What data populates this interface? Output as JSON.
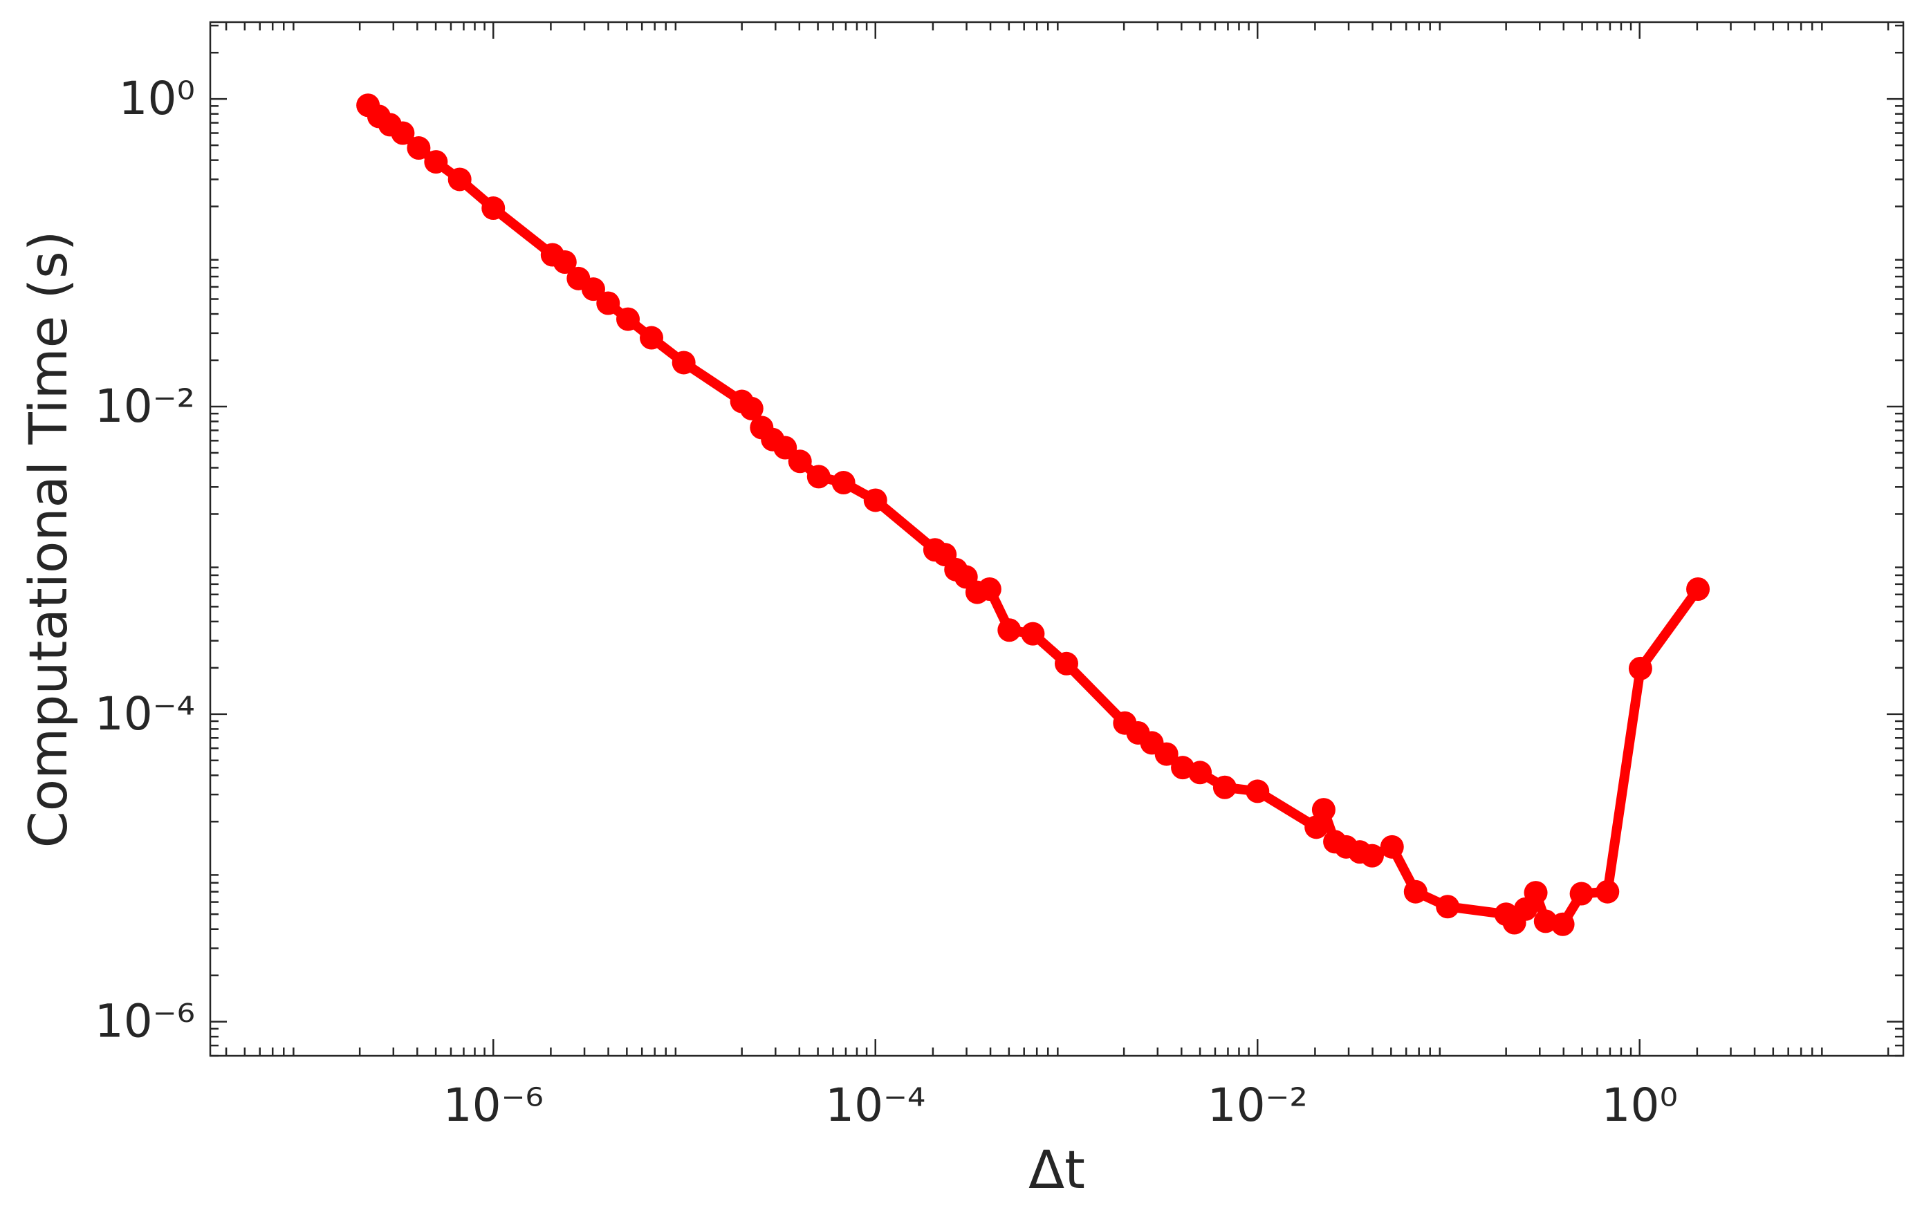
{
  "chart_data": {
    "type": "line",
    "x_label": "Δt",
    "y_label": "Computational Time (s)",
    "log_x": true,
    "log_y": true,
    "xlim": [
      3.3e-08,
      24
    ],
    "ylim": [
      6e-07,
      3.16
    ],
    "xticks": [
      {
        "value": 1e-06,
        "label": "10⁻⁶"
      },
      {
        "value": 0.0001,
        "label": "10⁻⁴"
      },
      {
        "value": 0.01,
        "label": "10⁻²"
      },
      {
        "value": 1,
        "label": "10⁰"
      }
    ],
    "yticks": [
      {
        "value": 1e-06,
        "label": "10⁻⁶"
      },
      {
        "value": 0.0001,
        "label": "10⁻⁴"
      },
      {
        "value": 0.01,
        "label": "10⁻²"
      },
      {
        "value": 1,
        "label": "10⁰"
      }
    ],
    "series": [
      {
        "color": "#ff0000",
        "x": [
          2.21e-07,
          2.52e-07,
          2.88e-07,
          3.36e-07,
          4.07e-07,
          5.01e-07,
          6.67e-07,
          1e-06,
          2.04e-06,
          2.37e-06,
          2.79e-06,
          3.34e-06,
          3.99e-06,
          5.07e-06,
          6.73e-06,
          9.93e-06,
          2e-05,
          2.25e-05,
          2.54e-05,
          2.9e-05,
          3.37e-05,
          4.03e-05,
          5.05e-05,
          6.81e-05,
          0.0001,
          0.000205,
          0.000231,
          0.000264,
          0.000298,
          0.000341,
          0.000396,
          0.000502,
          0.000667,
          0.001,
          0.00202,
          0.00237,
          0.0028,
          0.00334,
          0.00406,
          0.005,
          0.00674,
          0.01,
          0.0203,
          0.0222,
          0.0254,
          0.0291,
          0.0343,
          0.0398,
          0.0506,
          0.0672,
          0.0989,
          0.2,
          0.221,
          0.253,
          0.286,
          0.322,
          0.396,
          0.496,
          0.679,
          1.01,
          2.02
        ],
        "values": [
          0.91,
          0.77,
          0.68,
          0.6,
          0.48,
          0.39,
          0.3,
          0.195,
          0.097,
          0.087,
          0.068,
          0.058,
          0.047,
          0.037,
          0.028,
          0.0193,
          0.0108,
          0.0097,
          0.0073,
          0.0061,
          0.0054,
          0.0044,
          0.0035,
          0.0032,
          0.00246,
          0.00117,
          0.00109,
          0.00087,
          0.00078,
          0.00062,
          0.00065,
          0.000352,
          0.000333,
          0.000213,
          8.75e-05,
          7.55e-05,
          6.5e-05,
          5.5e-05,
          4.49e-05,
          4.17e-05,
          3.34e-05,
          3.15e-05,
          1.84e-05,
          2.39e-05,
          1.48e-05,
          1.37e-05,
          1.27e-05,
          1.2e-05,
          1.37e-05,
          7e-06,
          5.6e-06,
          5e-06,
          4.4e-06,
          5.4e-06,
          6.9e-06,
          4.5e-06,
          4.3e-06,
          6.8e-06,
          7e-06,
          0.000198,
          0.00065
        ]
      }
    ]
  }
}
